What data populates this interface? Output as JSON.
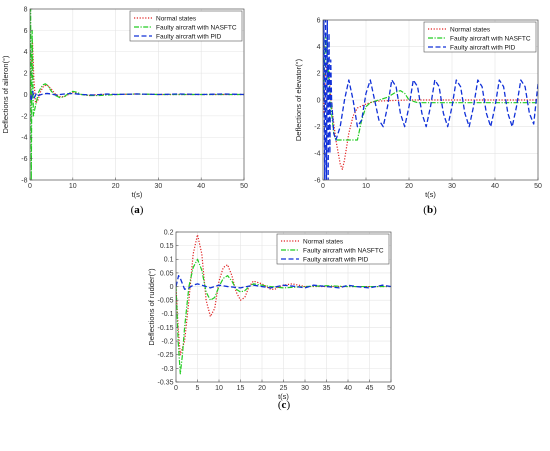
{
  "chart_data": [
    {
      "type": "line",
      "caption_letter": "a",
      "xlabel": "t(s)",
      "ylabel": "Deflections of aileron(°)",
      "xlim": [
        0,
        50
      ],
      "ylim": [
        -8,
        8
      ],
      "xticks": [
        0,
        10,
        20,
        30,
        40,
        50
      ],
      "yticks": [
        -8,
        -6,
        -4,
        -2,
        0,
        2,
        4,
        6,
        8
      ],
      "grid": true,
      "legend_position": "top-right",
      "series": [
        {
          "name": "Normal states",
          "color": "#e02020",
          "dash": "1.2,1.6",
          "x": [
            0,
            0.3,
            0.6,
            0.9,
            1.3,
            1.8,
            2.5,
            3.2,
            4,
            5,
            6,
            7,
            8,
            10,
            12,
            14,
            16,
            20,
            25,
            30,
            40,
            50
          ],
          "y": [
            0,
            2.5,
            4.8,
            1.5,
            -0.8,
            -0.6,
            0.3,
            0.8,
            0.9,
            0.5,
            0,
            -0.2,
            -0.2,
            0.2,
            0,
            -0.1,
            0,
            0,
            0.05,
            0,
            0,
            0
          ]
        },
        {
          "name": "Faulty aircraft with NASFTC",
          "color": "#22cc22",
          "dash": "5,1.5,1.2,1.5",
          "x": [
            0,
            0.15,
            0.3,
            0.5,
            0.8,
            1.2,
            1.6,
            2,
            2.5,
            3,
            3.6,
            4.2,
            5,
            6,
            7,
            8,
            9,
            10,
            11,
            12,
            14,
            16,
            20,
            25,
            30,
            40,
            50
          ],
          "y": [
            0,
            8,
            -8,
            6,
            -2,
            -1.2,
            -0.5,
            0.2,
            0.6,
            0.9,
            1,
            0.8,
            0.3,
            -0.1,
            -0.3,
            -0.2,
            0.1,
            0.3,
            0.2,
            0,
            -0.1,
            -0.1,
            0,
            0.05,
            0,
            0,
            0
          ]
        },
        {
          "name": "Faulty aircraft with PID",
          "color": "#1030d8",
          "dash": "5,2.5",
          "x": [
            0,
            0.3,
            0.6,
            1,
            1.5,
            2,
            3,
            4,
            5,
            6,
            8,
            10,
            12,
            15,
            18,
            20,
            25,
            30,
            35,
            40,
            45,
            50
          ],
          "y": [
            0,
            -0.6,
            0.3,
            -0.3,
            0.1,
            -0.1,
            0.05,
            0.1,
            0.05,
            -0.05,
            0.05,
            0.1,
            0,
            -0.05,
            0.05,
            0,
            0.05,
            0,
            0.05,
            0,
            0.05,
            0
          ]
        }
      ]
    },
    {
      "type": "line",
      "caption_letter": "b",
      "xlabel": "t(s)",
      "ylabel": "Deflections of elevator(°)",
      "xlim": [
        0,
        50
      ],
      "ylim": [
        -6,
        6
      ],
      "xticks": [
        0,
        10,
        20,
        30,
        40,
        50
      ],
      "yticks": [
        -6,
        -4,
        -2,
        0,
        2,
        4,
        6
      ],
      "grid": true,
      "legend_position": "top-right",
      "series": [
        {
          "name": "Normal states",
          "color": "#e02020",
          "dash": "1.2,1.6",
          "x": [
            0,
            0.3,
            0.6,
            1,
            1.5,
            2,
            3,
            4,
            4.5,
            5,
            6,
            7,
            8,
            10,
            12,
            15,
            18,
            20,
            25,
            30,
            35,
            40,
            50
          ],
          "y": [
            0,
            -1,
            2,
            3,
            1.5,
            -0.5,
            -3,
            -4.8,
            -5.2,
            -4.5,
            -2.5,
            -1.2,
            -0.6,
            -0.3,
            -0.1,
            -0.05,
            -0.02,
            0,
            0,
            0,
            0,
            0,
            0
          ]
        },
        {
          "name": "Faulty aircraft with NASFTC",
          "color": "#22cc22",
          "dash": "5,1.5,1.2,1.5",
          "x": [
            0,
            0.3,
            0.6,
            1,
            1.5,
            2,
            2.5,
            3,
            5,
            6.5,
            8,
            9,
            10,
            11,
            12,
            13,
            15,
            17,
            18,
            19,
            20,
            22,
            25,
            30,
            40,
            50
          ],
          "y": [
            0,
            2,
            5,
            3,
            1,
            -1,
            -2.5,
            -3,
            -3,
            -3,
            -3,
            -1.5,
            -0.5,
            -0.2,
            -0.1,
            0,
            0.2,
            0.6,
            0.7,
            0.5,
            0,
            -0.2,
            -0.2,
            -0.2,
            -0.2,
            -0.2
          ]
        },
        {
          "name": "Faulty aircraft with PID",
          "color": "#1030d8",
          "dash": "5,2.5",
          "x": [
            0,
            0.2,
            0.4,
            0.6,
            0.8,
            1.0,
            1.2,
            1.4,
            1.6,
            1.8,
            2.0,
            2.5,
            3,
            4,
            5,
            6,
            7,
            8,
            9,
            10,
            11,
            12,
            13,
            14,
            15,
            16,
            17,
            18,
            19,
            20,
            21,
            22,
            23,
            24,
            25,
            26,
            27,
            28,
            29,
            30,
            31,
            32,
            33,
            34,
            35,
            36,
            37,
            38,
            39,
            40,
            41,
            42,
            43,
            44,
            45,
            46,
            47,
            48,
            49,
            50
          ],
          "y": [
            0,
            6,
            -6,
            6,
            -6,
            6,
            -6,
            5,
            -4,
            3,
            0,
            -2.5,
            -3,
            -2,
            0,
            1.5,
            0,
            -2,
            -1.5,
            0.5,
            1.5,
            0,
            -1.5,
            -2,
            -0.5,
            1.5,
            1,
            -1,
            -2,
            -0.5,
            1.5,
            1,
            -1,
            -2,
            -0.5,
            1.5,
            1,
            -1,
            -2,
            -0.5,
            1.5,
            1,
            -1,
            -2,
            -0.5,
            1.5,
            1,
            -1,
            -2,
            -0.5,
            1.5,
            1,
            -1,
            -2,
            -0.5,
            1.5,
            1,
            -1,
            -1.8,
            1.2
          ]
        }
      ]
    },
    {
      "type": "line",
      "caption_letter": "c",
      "xlabel": "t(s)",
      "ylabel": "Deflections of rudder(°)",
      "xlim": [
        0,
        50
      ],
      "ylim": [
        -0.35,
        0.2
      ],
      "xticks": [
        0,
        5,
        10,
        15,
        20,
        25,
        30,
        35,
        40,
        45,
        50
      ],
      "yticks": [
        0.2,
        0.15,
        0.1,
        0.05,
        0,
        -0.05,
        -0.1,
        -0.15,
        -0.2,
        -0.25,
        -0.3,
        -0.35
      ],
      "grid": true,
      "legend_position": "top-right",
      "series": [
        {
          "name": "Normal states",
          "color": "#e02020",
          "dash": "1.2,1.6",
          "x": [
            0,
            0.5,
            1,
            2,
            3,
            4,
            5,
            6,
            7,
            8,
            9,
            10,
            11,
            12,
            13,
            14,
            15,
            16,
            17,
            18,
            19,
            20,
            21,
            22,
            23,
            24,
            25,
            27,
            30,
            35,
            40,
            45,
            50
          ],
          "y": [
            0,
            -0.15,
            -0.25,
            -0.2,
            -0.05,
            0.12,
            0.19,
            0.12,
            -0.05,
            -0.11,
            -0.08,
            0.02,
            0.07,
            0.08,
            0.04,
            -0.02,
            -0.05,
            -0.04,
            0,
            0.02,
            0.015,
            0.01,
            0,
            -0.01,
            -0.01,
            0,
            0.005,
            0.01,
            0,
            0,
            0,
            0,
            0
          ]
        },
        {
          "name": "Faulty aircraft with NASFTC",
          "color": "#22cc22",
          "dash": "5,1.5,1.2,1.5",
          "x": [
            0,
            0.5,
            1,
            1.5,
            2,
            3,
            4,
            5,
            6,
            7,
            8,
            9,
            10,
            11,
            12,
            13,
            14,
            15,
            16,
            17,
            18,
            20,
            22,
            25,
            30,
            35,
            40,
            45,
            50
          ],
          "y": [
            0,
            -0.2,
            -0.32,
            -0.25,
            -0.15,
            0,
            0.07,
            0.1,
            0.06,
            -0.02,
            -0.05,
            -0.04,
            0,
            0.03,
            0.04,
            0.02,
            -0.01,
            -0.02,
            -0.015,
            0,
            0.01,
            0.005,
            0,
            -0.005,
            0,
            0.003,
            0,
            0,
            0
          ]
        },
        {
          "name": "Faulty aircraft with PID",
          "color": "#1030d8",
          "dash": "5,2.5",
          "x": [
            0,
            0.3,
            0.6,
            1,
            1.5,
            2,
            3,
            4,
            5,
            6,
            8,
            10,
            12,
            15,
            18,
            20,
            22,
            25,
            28,
            30,
            32,
            35,
            38,
            40,
            42,
            45,
            48,
            50
          ],
          "y": [
            0,
            0.02,
            0.04,
            0.03,
            0.01,
            -0.01,
            -0.005,
            0.005,
            0.01,
            0.005,
            -0.005,
            0.005,
            0,
            -0.005,
            0.005,
            0,
            -0.005,
            0.005,
            0,
            -0.005,
            0.005,
            0,
            -0.005,
            0.005,
            0,
            -0.005,
            0.005,
            0
          ]
        }
      ]
    }
  ]
}
